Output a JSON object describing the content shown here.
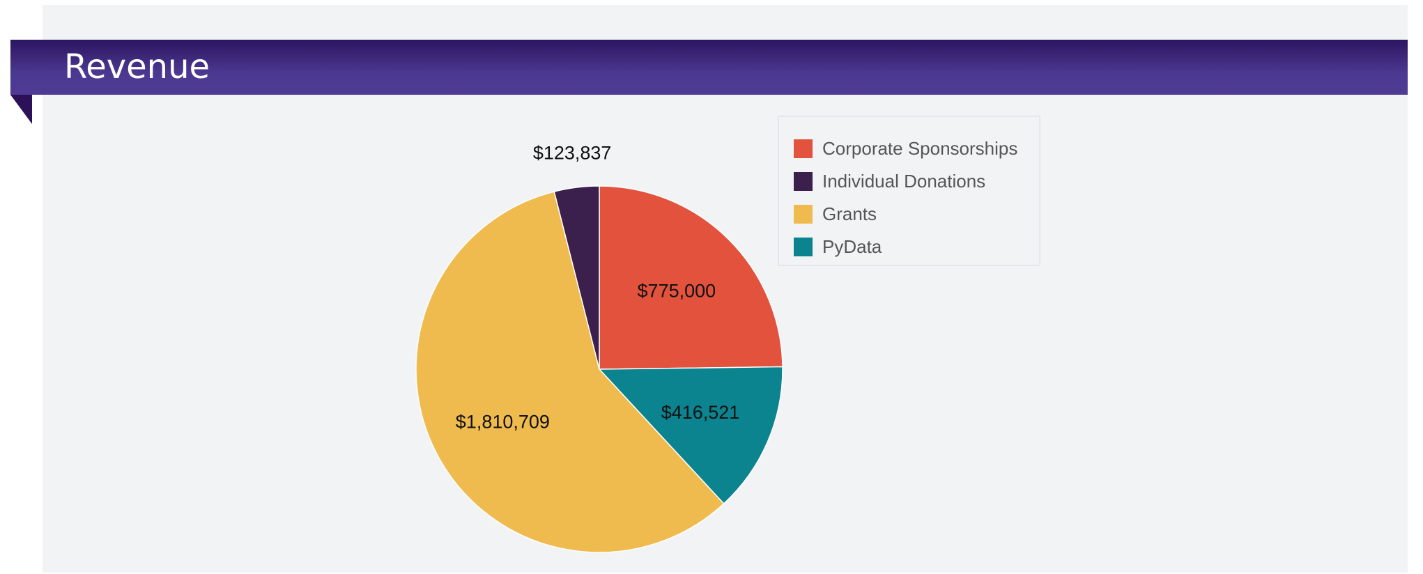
{
  "header": {
    "title": "Revenue"
  },
  "chart_data": {
    "type": "pie",
    "title": "Revenue",
    "slices": [
      {
        "name": "Corporate Sponsorships",
        "value": 775000,
        "label": "$775,000",
        "color": "#e2523d"
      },
      {
        "name": "PyData",
        "value": 416521,
        "label": "$416,521",
        "color": "#0b8490"
      },
      {
        "name": "Grants",
        "value": 1810709,
        "label": "$1,810,709",
        "color": "#efbb4f"
      },
      {
        "name": "Individual Donations",
        "value": 123837,
        "label": "$123,837",
        "color": "#3b1f4d"
      }
    ],
    "legend": {
      "placement": "top-right",
      "items": [
        {
          "name": "Corporate Sponsorships",
          "color": "#e2523d"
        },
        {
          "name": "Individual Donations",
          "color": "#3b1f4d"
        },
        {
          "name": "Grants",
          "color": "#efbb4f"
        },
        {
          "name": "PyData",
          "color": "#0b8490"
        }
      ]
    }
  }
}
